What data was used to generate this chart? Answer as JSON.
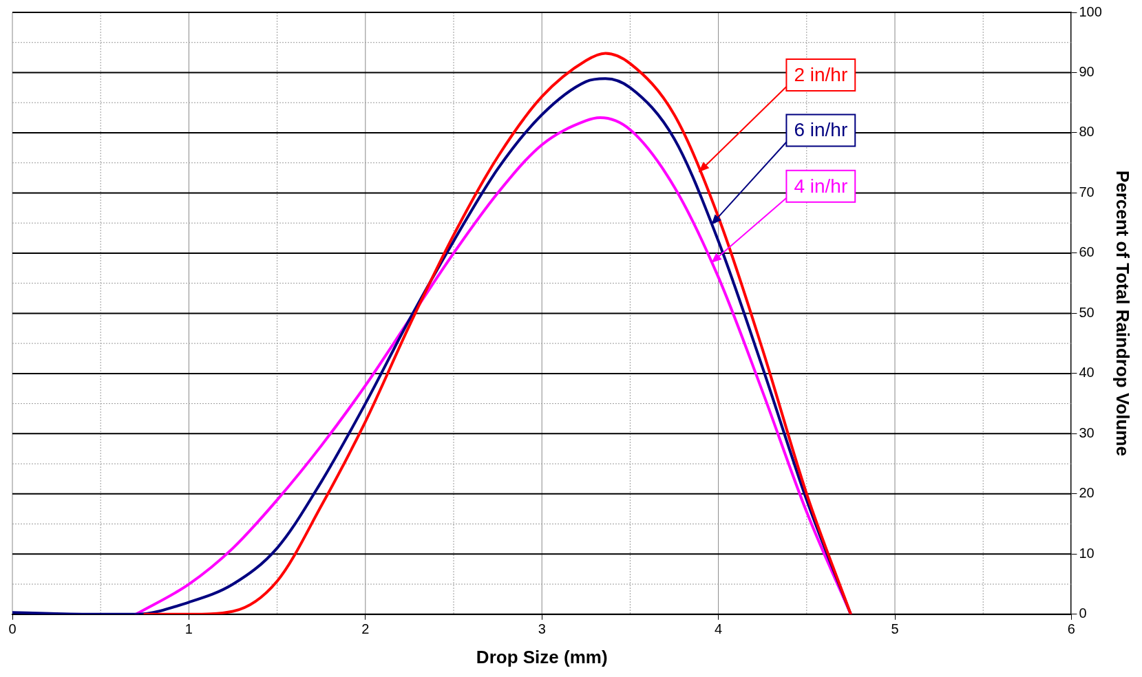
{
  "chart_data": {
    "type": "line",
    "xlabel": "Drop Size (mm)",
    "ylabel": "Percent of Total Raindrop Volume",
    "xlim": [
      0,
      6
    ],
    "xticks": [
      0,
      {
        "value": 0.5,
        "label": null
      },
      1,
      {
        "value": 1.5,
        "label": null
      },
      2,
      {
        "value": 2.5,
        "label": null
      },
      3,
      {
        "value": 3.5,
        "label": null
      },
      4,
      {
        "value": 4.5,
        "label": null
      },
      5,
      {
        "value": 5.5,
        "label": null
      },
      6
    ],
    "ylim": [
      0,
      100
    ],
    "yticks": [
      0,
      {
        "value": 5,
        "label": null
      },
      10,
      {
        "value": 15,
        "label": null
      },
      20,
      {
        "value": 25,
        "label": null
      },
      30,
      {
        "value": 35,
        "label": null
      },
      40,
      {
        "value": 45,
        "label": null
      },
      50,
      {
        "value": 55,
        "label": null
      },
      60,
      {
        "value": 65,
        "label": null
      },
      70,
      {
        "value": 75,
        "label": null
      },
      80,
      {
        "value": 85,
        "label": null
      },
      90,
      {
        "value": 95,
        "label": null
      },
      100
    ],
    "grid": true,
    "legend": false,
    "marker": "none",
    "line_style": "solid",
    "series": [
      {
        "name": "2 in/hr",
        "color": "#ff0000",
        "x": [
          0.75,
          1,
          1.25,
          1.5,
          1.75,
          2,
          2.25,
          2.5,
          2.75,
          3,
          3.25,
          3.36,
          3.5,
          3.75,
          4,
          4.25,
          4.5,
          4.75
        ],
        "values": [
          0,
          0,
          0.5,
          5.5,
          18,
          32,
          48,
          63,
          76,
          86,
          92,
          93.2,
          91.5,
          83,
          66,
          44,
          20,
          0
        ]
      },
      {
        "name": "6 in/hr",
        "color": "#000080",
        "x": [
          0,
          0.25,
          0.5,
          0.7,
          1,
          1.25,
          1.5,
          1.75,
          2,
          2.25,
          2.5,
          2.75,
          3,
          3.25,
          3.36,
          3.5,
          3.75,
          4,
          4.25,
          4.5,
          4.75
        ],
        "values": [
          0.3,
          0.1,
          0,
          0,
          2,
          5,
          11,
          22,
          35,
          49,
          62,
          74,
          83,
          88.5,
          89,
          87.5,
          79,
          62,
          41,
          19,
          0
        ]
      },
      {
        "name": "4 in/hr",
        "color": "#ff00ff",
        "x": [
          0.7,
          1,
          1.25,
          1.5,
          1.75,
          2,
          2.25,
          2.5,
          2.75,
          3,
          3.25,
          3.33,
          3.5,
          3.75,
          4,
          4.25,
          4.5,
          4.75
        ],
        "values": [
          0,
          5,
          11,
          19,
          28,
          38,
          49,
          60,
          70,
          78,
          82,
          82.5,
          80.5,
          71,
          56,
          37,
          17,
          0
        ]
      }
    ]
  }
}
